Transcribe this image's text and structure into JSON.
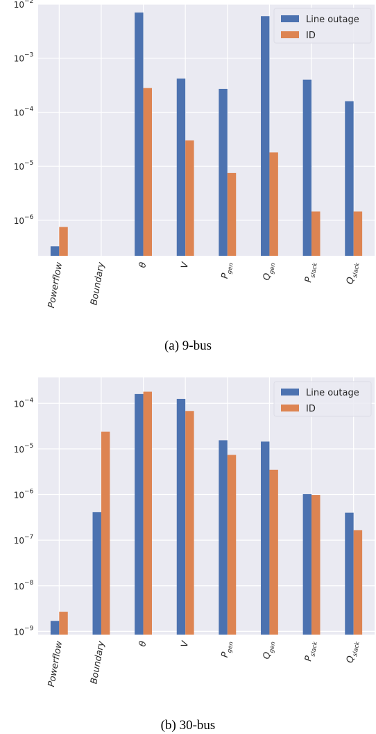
{
  "colors": {
    "line_outage": "#4c72b0",
    "id": "#dd8452",
    "plot_bg": "#eaeaf2",
    "grid": "#ffffff"
  },
  "categories_display": [
    {
      "main": "Powerflow",
      "sub": ""
    },
    {
      "main": "Boundary",
      "sub": ""
    },
    {
      "main": "θ",
      "sub": ""
    },
    {
      "main": "V",
      "sub": ""
    },
    {
      "main": "P",
      "sub": "gen"
    },
    {
      "main": "Q",
      "sub": "gen"
    },
    {
      "main": "P",
      "sub": "slack"
    },
    {
      "main": "Q",
      "sub": "slack"
    }
  ],
  "captions": [
    "(a)  9-bus",
    "(b)  30-bus"
  ],
  "chart_data": [
    {
      "type": "bar",
      "yscale": "log",
      "categories": [
        "Powerflow",
        "Boundary",
        "θ",
        "V",
        "P_gen",
        "Q_gen",
        "P_slack",
        "Q_slack"
      ],
      "series": [
        {
          "name": "Line outage",
          "values": [
            3.3e-07,
            null,
            0.007,
            0.00042,
            0.00027,
            0.006,
            0.0004,
            0.00016
          ]
        },
        {
          "name": "ID",
          "values": [
            7.5e-07,
            null,
            0.00028,
            3e-05,
            7.5e-06,
            1.8e-05,
            1.45e-06,
            1.45e-06
          ]
        }
      ],
      "ylim": [
        2.2e-07,
        0.01
      ],
      "yticks": [
        {
          "value": 1e-06,
          "base": "10",
          "exp": "−6"
        },
        {
          "value": 1e-05,
          "base": "10",
          "exp": "−5"
        },
        {
          "value": 0.0001,
          "base": "10",
          "exp": "−4"
        },
        {
          "value": 0.001,
          "base": "10",
          "exp": "−3"
        },
        {
          "value": 0.01,
          "base": "10",
          "exp": "−2"
        }
      ],
      "legend": "top-right",
      "grid": true
    },
    {
      "type": "bar",
      "yscale": "log",
      "categories": [
        "Powerflow",
        "Boundary",
        "θ",
        "V",
        "P_gen",
        "Q_gen",
        "P_slack",
        "Q_slack"
      ],
      "series": [
        {
          "name": "Line outage",
          "values": [
            1.7e-09,
            4.1e-07,
            0.00016,
            0.000125,
            1.55e-05,
            1.45e-05,
            1.02e-06,
            4e-07
          ]
        },
        {
          "name": "ID",
          "values": [
            2.7e-09,
            2.4e-05,
            0.00018,
            6.8e-05,
            7.4e-06,
            3.5e-06,
            9.8e-07,
            1.65e-07
          ]
        }
      ],
      "ylim": [
        8.5e-10,
        0.00037
      ],
      "yticks": [
        {
          "value": 1e-09,
          "base": "10",
          "exp": "−9"
        },
        {
          "value": 1e-08,
          "base": "10",
          "exp": "−8"
        },
        {
          "value": 1e-07,
          "base": "10",
          "exp": "−7"
        },
        {
          "value": 1e-06,
          "base": "10",
          "exp": "−6"
        },
        {
          "value": 1e-05,
          "base": "10",
          "exp": "−5"
        },
        {
          "value": 0.0001,
          "base": "10",
          "exp": "−4"
        }
      ],
      "legend": "top-right",
      "grid": true
    }
  ]
}
